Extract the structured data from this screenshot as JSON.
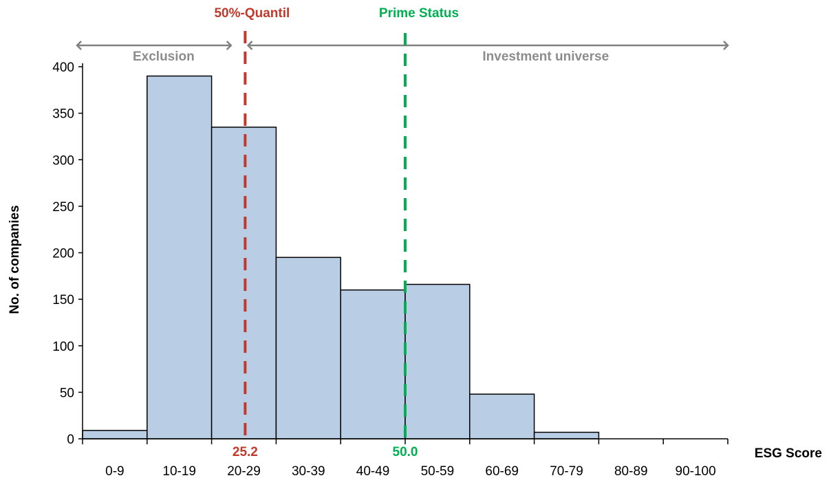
{
  "chart_data": {
    "type": "bar",
    "categories": [
      "0-9",
      "10-19",
      "20-29",
      "30-39",
      "40-49",
      "50-59",
      "60-69",
      "70-79",
      "80-89",
      "90-100"
    ],
    "values": [
      9,
      390,
      335,
      195,
      160,
      166,
      48,
      7,
      0,
      0
    ],
    "xlabel": "ESG Score",
    "ylabel": "No. of companies",
    "ylim": [
      0,
      400
    ],
    "yticks": [
      0,
      50,
      100,
      150,
      200,
      250,
      300,
      350,
      400
    ],
    "grid": false,
    "bar_color": "#b9cde5",
    "reference_lines": [
      {
        "label": "50%-Quantil",
        "value": 25.2,
        "value_label": "25.2",
        "color": "#c0392b"
      },
      {
        "label": "Prime Status",
        "value": 50.0,
        "value_label": "50.0",
        "color": "#00b050"
      }
    ],
    "ranges": [
      {
        "label": "Exclusion",
        "from": 0,
        "to": 23
      },
      {
        "label": "Investment universe",
        "from": 26.5,
        "to": 100
      }
    ],
    "range_color": "#808080"
  }
}
